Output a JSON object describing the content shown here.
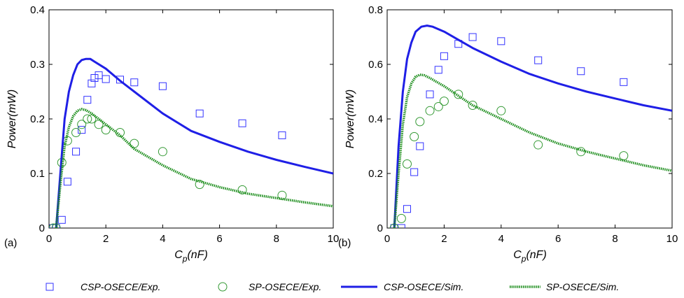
{
  "chart_data": [
    {
      "type": "scatter",
      "panel_label": "(a)",
      "xlabel_main": "C",
      "xlabel_sub": "p",
      "xlabel_unit": "(nF)",
      "ylabel": "Power(mW)",
      "xlim": [
        0,
        10
      ],
      "ylim": [
        0,
        0.4
      ],
      "xticks": [
        "0",
        "2",
        "4",
        "6",
        "8",
        "10"
      ],
      "yticks": [
        "0",
        "0.1",
        "0.2",
        "0.3",
        "0.4"
      ],
      "grid": false,
      "series": [
        {
          "name": "CSP-OSECE/Exp.",
          "kind": "marker-square",
          "color": "#3333ff",
          "x": [
            0.15,
            0.25,
            0.45,
            0.65,
            0.95,
            1.15,
            1.35,
            1.5,
            1.6,
            1.75,
            2.0,
            2.5,
            3.0,
            4.0,
            5.3,
            6.8,
            8.2
          ],
          "y": [
            0.0,
            0.0,
            0.015,
            0.085,
            0.14,
            0.18,
            0.235,
            0.265,
            0.275,
            0.28,
            0.273,
            0.272,
            0.267,
            0.26,
            0.21,
            0.192,
            0.17
          ]
        },
        {
          "name": "SP-OSECE/Exp.",
          "kind": "marker-circle",
          "color": "#339933",
          "x": [
            0.15,
            0.25,
            0.45,
            0.65,
            0.95,
            1.15,
            1.35,
            1.5,
            1.75,
            2.0,
            2.5,
            3.0,
            4.0,
            5.3,
            6.8,
            8.2
          ],
          "y": [
            0.0,
            0.0,
            0.12,
            0.16,
            0.175,
            0.19,
            0.2,
            0.2,
            0.19,
            0.18,
            0.175,
            0.155,
            0.14,
            0.08,
            0.07,
            0.06
          ]
        },
        {
          "name": "CSP-OSECE/Sim.",
          "kind": "line-solid",
          "color": "#1f1fe6",
          "x": [
            0.25,
            0.4,
            0.55,
            0.7,
            0.85,
            1.0,
            1.15,
            1.3,
            1.45,
            1.6,
            2.0,
            2.5,
            3.0,
            4.0,
            5.0,
            6.0,
            7.0,
            8.0,
            9.0,
            10.0
          ],
          "y": [
            0.0,
            0.1,
            0.2,
            0.25,
            0.28,
            0.3,
            0.308,
            0.31,
            0.31,
            0.305,
            0.292,
            0.27,
            0.25,
            0.21,
            0.178,
            0.158,
            0.14,
            0.125,
            0.112,
            0.1
          ]
        },
        {
          "name": "SP-OSECE/Sim.",
          "kind": "line-dotted",
          "color": "#1a8c1a",
          "x": [
            0.25,
            0.4,
            0.55,
            0.7,
            0.85,
            1.0,
            1.15,
            1.3,
            1.5,
            2.0,
            2.5,
            3.0,
            4.0,
            5.0,
            6.0,
            7.0,
            8.0,
            9.0,
            10.0
          ],
          "y": [
            0.0,
            0.08,
            0.15,
            0.185,
            0.205,
            0.215,
            0.218,
            0.216,
            0.21,
            0.19,
            0.17,
            0.145,
            0.115,
            0.09,
            0.075,
            0.063,
            0.055,
            0.047,
            0.04
          ]
        }
      ]
    },
    {
      "type": "scatter",
      "panel_label": "(b)",
      "xlabel_main": "C",
      "xlabel_sub": "p",
      "xlabel_unit": "(nF)",
      "ylabel": "Power(mW)",
      "xlim": [
        0,
        10
      ],
      "ylim": [
        0,
        0.8
      ],
      "xticks": [
        "0",
        "2",
        "4",
        "6",
        "8",
        "10"
      ],
      "yticks": [
        "0",
        "0.2",
        "0.4",
        "0.6",
        "0.8"
      ],
      "grid": false,
      "series": [
        {
          "name": "CSP-OSECE/Exp.",
          "kind": "marker-square",
          "color": "#3333ff",
          "x": [
            0.25,
            0.5,
            0.7,
            0.95,
            1.15,
            1.5,
            1.8,
            2.0,
            2.5,
            3.0,
            4.0,
            5.3,
            6.8,
            8.3
          ],
          "y": [
            0.0,
            0.0,
            0.07,
            0.205,
            0.3,
            0.49,
            0.58,
            0.63,
            0.675,
            0.7,
            0.685,
            0.615,
            0.575,
            0.535
          ]
        },
        {
          "name": "SP-OSECE/Exp.",
          "kind": "marker-circle",
          "color": "#339933",
          "x": [
            0.25,
            0.5,
            0.7,
            0.95,
            1.15,
            1.5,
            1.8,
            2.0,
            2.5,
            3.0,
            4.0,
            5.3,
            6.8,
            8.3
          ],
          "y": [
            0.0,
            0.035,
            0.235,
            0.335,
            0.39,
            0.43,
            0.445,
            0.465,
            0.49,
            0.45,
            0.43,
            0.305,
            0.28,
            0.265
          ]
        },
        {
          "name": "CSP-OSECE/Sim.",
          "kind": "line-solid",
          "color": "#1f1fe6",
          "x": [
            0.25,
            0.4,
            0.55,
            0.7,
            0.85,
            1.0,
            1.2,
            1.4,
            1.6,
            2.0,
            2.5,
            3.0,
            4.0,
            5.0,
            6.0,
            7.0,
            8.0,
            9.0,
            10.0
          ],
          "y": [
            0.0,
            0.3,
            0.5,
            0.62,
            0.68,
            0.72,
            0.738,
            0.742,
            0.738,
            0.72,
            0.69,
            0.66,
            0.61,
            0.565,
            0.53,
            0.5,
            0.475,
            0.45,
            0.43
          ]
        },
        {
          "name": "SP-OSECE/Sim.",
          "kind": "line-dotted",
          "color": "#1a8c1a",
          "x": [
            0.25,
            0.4,
            0.55,
            0.7,
            0.85,
            1.0,
            1.15,
            1.3,
            1.5,
            2.0,
            2.5,
            3.0,
            4.0,
            5.0,
            6.0,
            7.0,
            8.0,
            9.0,
            10.0
          ],
          "y": [
            0.0,
            0.2,
            0.38,
            0.48,
            0.53,
            0.555,
            0.562,
            0.56,
            0.55,
            0.52,
            0.485,
            0.45,
            0.4,
            0.35,
            0.31,
            0.28,
            0.255,
            0.23,
            0.21
          ]
        }
      ]
    }
  ],
  "legend": {
    "placement": "bottom",
    "entries": [
      {
        "label": "CSP-OSECE/Exp.",
        "kind": "marker-square",
        "color": "#3333ff"
      },
      {
        "label": "SP-OSECE/Exp.",
        "kind": "marker-circle",
        "color": "#339933"
      },
      {
        "label": "CSP-OSECE/Sim.",
        "kind": "line-solid",
        "color": "#1f1fe6"
      },
      {
        "label": "SP-OSECE/Sim.",
        "kind": "line-dotted",
        "color": "#1a8c1a"
      }
    ]
  }
}
